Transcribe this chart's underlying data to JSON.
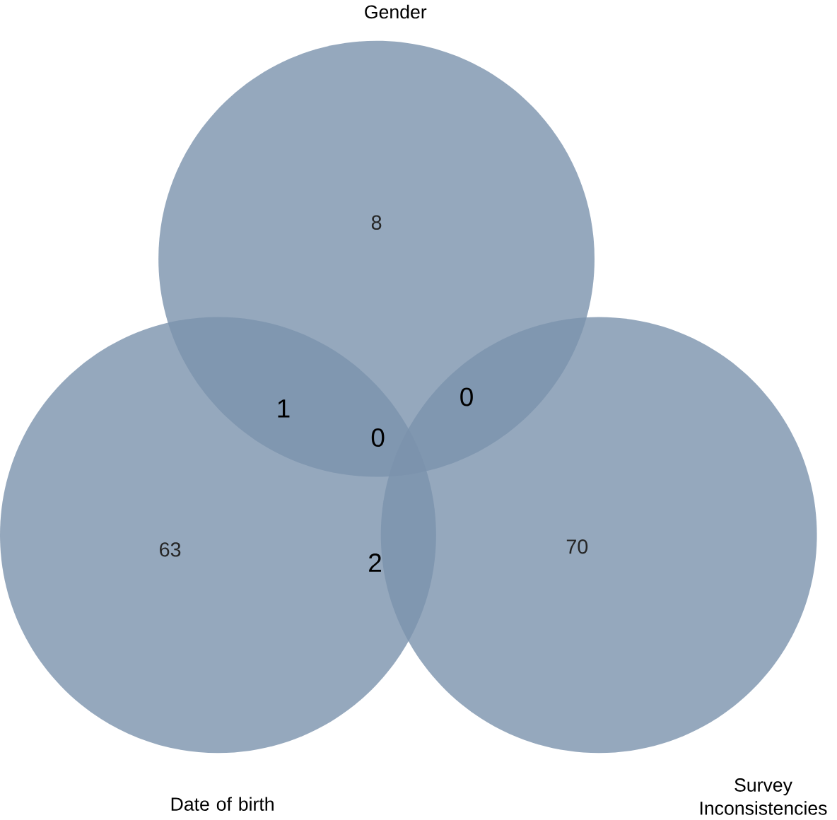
{
  "chart_data": {
    "type": "other",
    "categories": [
      "Gender",
      "Date of birth",
      "Survey Inconsistencies"
    ],
    "values": [
      8,
      63,
      70
    ],
    "color": "#7b92ad",
    "data_labels": true,
    "annotations": [
      "1",
      "0",
      "0",
      "2"
    ]
  }
}
